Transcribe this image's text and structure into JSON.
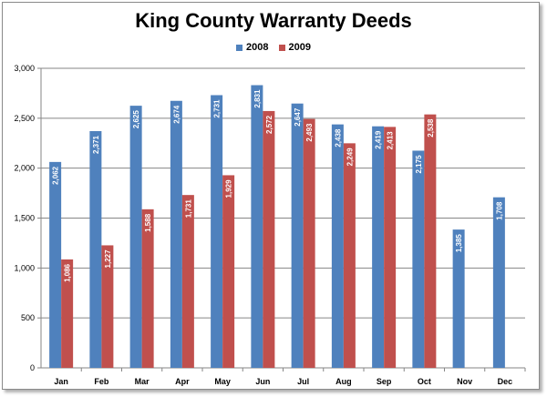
{
  "chart_data": {
    "type": "bar",
    "title": "King County Warranty Deeds",
    "categories": [
      "Jan",
      "Feb",
      "Mar",
      "Apr",
      "May",
      "Jun",
      "Jul",
      "Aug",
      "Sep",
      "Oct",
      "Nov",
      "Dec"
    ],
    "series": [
      {
        "name": "2008",
        "color": "#4f81bd",
        "values": [
          2062,
          2371,
          2625,
          2674,
          2731,
          2831,
          2647,
          2438,
          2419,
          2175,
          1385,
          1708
        ],
        "labels": [
          "2,062",
          "2,371",
          "2,625",
          "2,674",
          "2,731",
          "2,831",
          "2,647",
          "2,438",
          "2,419",
          "2,175",
          "1,385",
          "1,708"
        ]
      },
      {
        "name": "2009",
        "color": "#c0504d",
        "values": [
          1086,
          1227,
          1588,
          1731,
          1929,
          2572,
          2493,
          2249,
          2413,
          2538,
          null,
          null
        ],
        "labels": [
          "1,086",
          "1,227",
          "1,588",
          "1,731",
          "1,929",
          "2,572",
          "2,493",
          "2,249",
          "2,413",
          "2,538",
          null,
          null
        ]
      }
    ],
    "ylim": [
      0,
      3000
    ],
    "yticks": [
      0,
      500,
      1000,
      1500,
      2000,
      2500,
      3000
    ],
    "ytick_labels": [
      "0",
      "500",
      "1,000",
      "1,500",
      "2,000",
      "2,500",
      "3,000"
    ],
    "legend_position": "top",
    "grid": true,
    "gridline_color": "#868686"
  }
}
